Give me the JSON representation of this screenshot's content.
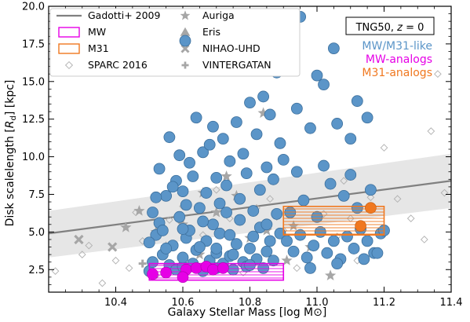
{
  "chart_data": {
    "type": "scatter",
    "xlabel": "Galaxy Stellar Mass [log M⊙]",
    "ylabel": "Disk scalelength [R_d] [kpc]",
    "ylabel_main": "Disk scalelength [",
    "ylabel_r": "R",
    "ylabel_sub": "d",
    "ylabel_tail": "] [kpc]",
    "xlim": [
      10.2,
      11.4
    ],
    "ylim": [
      1.0,
      20.0
    ],
    "xticks": [
      10.4,
      10.6,
      10.8,
      11.0,
      11.2,
      11.4
    ],
    "xtick_labels": [
      "10.4",
      "10.6",
      "10.8",
      "11.0",
      "11.2",
      "11.4"
    ],
    "yticks": [
      2.5,
      5.0,
      7.5,
      10.0,
      12.5,
      15.0,
      17.5,
      20.0
    ],
    "ytick_labels": [
      "2.5",
      "5.0",
      "7.5",
      "10.0",
      "12.5",
      "15.0",
      "17.5",
      "20.0"
    ],
    "grid": false,
    "legend_position": "top-left",
    "legend": {
      "col1": [
        {
          "label": "Gadotti+ 2009",
          "kind": "line",
          "color": "#808080"
        },
        {
          "label": "MW",
          "kind": "hatched-box",
          "color": "#e600e6"
        },
        {
          "label": "M31",
          "kind": "hatched-box",
          "color": "#f07820"
        },
        {
          "label": "SPARC 2016",
          "kind": "open-diamond",
          "color": "#b0b0b0"
        }
      ],
      "col2": [
        {
          "label": "Auriga",
          "kind": "star",
          "color": "#a6a6a6"
        },
        {
          "label": "Eris",
          "kind": "triangle",
          "color": "#a6a6a6"
        },
        {
          "label": "NIHAO-UHD",
          "kind": "cross",
          "color": "#a6a6a6"
        },
        {
          "label": "VINTERGATAN",
          "kind": "plus",
          "color": "#a6a6a6"
        }
      ],
      "col2_top": {
        "kind": "circle",
        "color": "#5b95c8"
      }
    },
    "annotations": {
      "sim_label_prefix": "TNG50, ",
      "sim_label_z": "z",
      "sim_label_suffix": " = 0",
      "group1": "MW/M31-like",
      "group2": "MW-analogs",
      "group3": "M31-analogs"
    },
    "colors": {
      "tng": "#5b95c8",
      "tng_edge": "#3c6f9c",
      "mw": "#e600e6",
      "m31": "#f07820",
      "obs": "#b0b0b0",
      "sims": "#a6a6a6",
      "relation": "#808080",
      "band": "#e6e6e6"
    },
    "relation": {
      "name": "Gadotti+ 2009",
      "x": [
        10.2,
        11.4
      ],
      "y": [
        4.9,
        8.4
      ],
      "band_lower": [
        3.3,
        6.6
      ],
      "band_upper": [
        6.4,
        10.2
      ]
    },
    "mw_box": {
      "x": [
        10.5,
        10.9
      ],
      "y": [
        1.8,
        2.9
      ]
    },
    "m31_box": {
      "x": [
        10.9,
        11.2
      ],
      "y": [
        4.8,
        6.7
      ]
    },
    "series": [
      {
        "name": "MW/M31-like",
        "marker": "circle",
        "points": [
          [
            10.5,
            2.4
          ],
          [
            10.51,
            3.0
          ],
          [
            10.52,
            4.8
          ],
          [
            10.53,
            5.6
          ],
          [
            10.54,
            3.5
          ],
          [
            10.55,
            7.4
          ],
          [
            10.56,
            2.8
          ],
          [
            10.57,
            4.1
          ],
          [
            10.58,
            2.5
          ],
          [
            10.59,
            6.0
          ],
          [
            10.6,
            2.7
          ],
          [
            10.6,
            3.3
          ],
          [
            10.61,
            4.6
          ],
          [
            10.62,
            5.1
          ],
          [
            10.63,
            2.9
          ],
          [
            10.64,
            3.8
          ],
          [
            10.65,
            6.6
          ],
          [
            10.66,
            2.4
          ],
          [
            10.67,
            4.4
          ],
          [
            10.68,
            3.1
          ],
          [
            10.69,
            5.5
          ],
          [
            10.7,
            2.6
          ],
          [
            10.7,
            3.6
          ],
          [
            10.71,
            4.9
          ],
          [
            10.72,
            2.9
          ],
          [
            10.73,
            6.3
          ],
          [
            10.74,
            3.4
          ],
          [
            10.75,
            2.5
          ],
          [
            10.76,
            4.2
          ],
          [
            10.77,
            5.8
          ],
          [
            10.78,
            3.0
          ],
          [
            10.79,
            2.7
          ],
          [
            10.8,
            3.9
          ],
          [
            10.81,
            4.7
          ],
          [
            10.82,
            3.2
          ],
          [
            10.83,
            5.3
          ],
          [
            10.84,
            2.6
          ],
          [
            10.85,
            3.7
          ],
          [
            10.86,
            4.4
          ],
          [
            10.87,
            3.1
          ],
          [
            10.88,
            6.2
          ],
          [
            10.89,
            4.9
          ],
          [
            10.5,
            4.3
          ],
          [
            10.55,
            3.9
          ],
          [
            10.6,
            5.2
          ],
          [
            10.65,
            4.0
          ],
          [
            10.7,
            3.9
          ],
          [
            10.75,
            3.5
          ],
          [
            10.8,
            2.8
          ],
          [
            10.85,
            5.5
          ],
          [
            10.52,
            7.3
          ],
          [
            10.58,
            8.4
          ],
          [
            10.62,
            9.6
          ],
          [
            10.66,
            10.3
          ],
          [
            10.7,
            8.6
          ],
          [
            10.74,
            9.7
          ],
          [
            10.78,
            10.2
          ],
          [
            10.82,
            11.5
          ],
          [
            10.86,
            12.8
          ],
          [
            10.9,
            9.8
          ],
          [
            10.56,
            11.3
          ],
          [
            10.64,
            12.6
          ],
          [
            10.72,
            11.2
          ],
          [
            10.8,
            13.6
          ],
          [
            10.88,
            15.6
          ],
          [
            10.94,
            13.2
          ],
          [
            10.98,
            11.9
          ],
          [
            11.02,
            14.8
          ],
          [
            11.06,
            12.2
          ],
          [
            11.1,
            11.2
          ],
          [
            10.9,
            16.5
          ],
          [
            10.95,
            19.3
          ],
          [
            11.0,
            15.4
          ],
          [
            11.05,
            17.2
          ],
          [
            11.12,
            13.7
          ],
          [
            11.15,
            12.6
          ],
          [
            10.84,
            14.0
          ],
          [
            10.76,
            12.3
          ],
          [
            10.68,
            10.8
          ],
          [
            10.6,
            7.7
          ],
          [
            10.91,
            4.4
          ],
          [
            10.93,
            3.7
          ],
          [
            10.95,
            4.8
          ],
          [
            10.97,
            3.3
          ],
          [
            10.99,
            4.1
          ],
          [
            11.01,
            5.0
          ],
          [
            11.03,
            3.6
          ],
          [
            11.05,
            4.4
          ],
          [
            11.07,
            3.2
          ],
          [
            11.09,
            4.7
          ],
          [
            11.11,
            3.9
          ],
          [
            11.13,
            5.2
          ],
          [
            11.15,
            4.4
          ],
          [
            11.17,
            3.6
          ],
          [
            11.19,
            4.9
          ],
          [
            10.92,
            6.3
          ],
          [
            10.96,
            7.1
          ],
          [
            11.0,
            6.0
          ],
          [
            11.04,
            8.2
          ],
          [
            11.08,
            7.4
          ],
          [
            11.12,
            6.6
          ],
          [
            11.16,
            7.8
          ],
          [
            11.2,
            5.1
          ],
          [
            10.94,
            9.0
          ],
          [
            11.02,
            9.4
          ],
          [
            11.1,
            8.8
          ],
          [
            11.18,
            3.6
          ],
          [
            10.98,
            2.6
          ],
          [
            11.06,
            2.9
          ],
          [
            11.14,
            3.2
          ],
          [
            10.53,
            9.2
          ],
          [
            10.57,
            8.0
          ],
          [
            10.61,
            6.8
          ],
          [
            10.63,
            8.7
          ],
          [
            10.67,
            7.6
          ],
          [
            10.71,
            6.9
          ],
          [
            10.73,
            8.1
          ],
          [
            10.77,
            7.2
          ],
          [
            10.79,
            8.9
          ],
          [
            10.83,
            7.8
          ],
          [
            10.87,
            8.5
          ],
          [
            10.89,
            10.9
          ],
          [
            10.69,
            12.0
          ],
          [
            10.59,
            10.1
          ],
          [
            10.85,
            9.3
          ],
          [
            10.81,
            6.4
          ],
          [
            10.51,
            6.3
          ],
          [
            10.54,
            5.1
          ],
          [
            10.66,
            5.7
          ],
          [
            10.74,
            4.8
          ]
        ]
      },
      {
        "name": "MW-analogs",
        "marker": "circle",
        "points": [
          [
            10.51,
            2.2
          ],
          [
            10.55,
            2.3
          ],
          [
            10.61,
            2.5
          ],
          [
            10.64,
            2.6
          ],
          [
            10.67,
            2.7
          ],
          [
            10.69,
            2.5
          ],
          [
            10.72,
            2.6
          ],
          [
            10.6,
            2.0
          ]
        ]
      },
      {
        "name": "M31-analogs",
        "marker": "circle",
        "points": [
          [
            11.13,
            5.4
          ],
          [
            11.16,
            6.6
          ]
        ]
      },
      {
        "name": "SPARC 2016",
        "marker": "open-diamond",
        "points": [
          [
            10.22,
            2.4
          ],
          [
            10.3,
            3.5
          ],
          [
            10.32,
            4.1
          ],
          [
            10.36,
            1.6
          ],
          [
            10.4,
            3.1
          ],
          [
            10.44,
            2.6
          ],
          [
            10.46,
            6.3
          ],
          [
            10.48,
            4.4
          ],
          [
            10.52,
            2.1
          ],
          [
            10.56,
            5.8
          ],
          [
            10.6,
            6.7
          ],
          [
            10.64,
            3.7
          ],
          [
            10.66,
            4.8
          ],
          [
            10.7,
            7.8
          ],
          [
            10.74,
            5.9
          ],
          [
            10.78,
            2.3
          ],
          [
            10.82,
            6.6
          ],
          [
            10.86,
            7.2
          ],
          [
            10.9,
            5.1
          ],
          [
            10.94,
            2.6
          ],
          [
            10.98,
            4.0
          ],
          [
            11.02,
            6.2
          ],
          [
            11.06,
            4.7
          ],
          [
            11.08,
            8.4
          ],
          [
            11.12,
            3.1
          ],
          [
            11.16,
            7.3
          ],
          [
            11.2,
            10.6
          ],
          [
            11.24,
            7.2
          ],
          [
            11.28,
            5.9
          ],
          [
            11.32,
            4.5
          ],
          [
            11.34,
            11.7
          ],
          [
            11.36,
            15.5
          ],
          [
            11.38,
            7.6
          ],
          [
            11.1,
            5.9
          ],
          [
            10.88,
            6.0
          ]
        ]
      },
      {
        "name": "Auriga",
        "marker": "star",
        "points": [
          [
            10.43,
            5.3
          ],
          [
            10.47,
            6.4
          ],
          [
            10.52,
            5.0
          ],
          [
            10.6,
            5.5
          ],
          [
            10.66,
            7.6
          ],
          [
            10.7,
            6.3
          ],
          [
            10.73,
            8.7
          ],
          [
            10.8,
            4.6
          ],
          [
            10.85,
            5.1
          ],
          [
            10.93,
            5.4
          ],
          [
            10.98,
            4.0
          ],
          [
            11.04,
            2.1
          ],
          [
            10.91,
            3.1
          ],
          [
            10.79,
            2.8
          ],
          [
            10.65,
            3.5
          ],
          [
            10.84,
            12.9
          ],
          [
            10.76,
            7.4
          ],
          [
            10.55,
            4.0
          ]
        ]
      },
      {
        "name": "NIHAO-UHD",
        "marker": "cross",
        "points": [
          [
            10.29,
            4.5
          ],
          [
            10.39,
            4.0
          ]
        ]
      },
      {
        "name": "VINTERGATAN",
        "marker": "plus",
        "points": [
          [
            10.48,
            2.9
          ]
        ]
      }
    ]
  }
}
